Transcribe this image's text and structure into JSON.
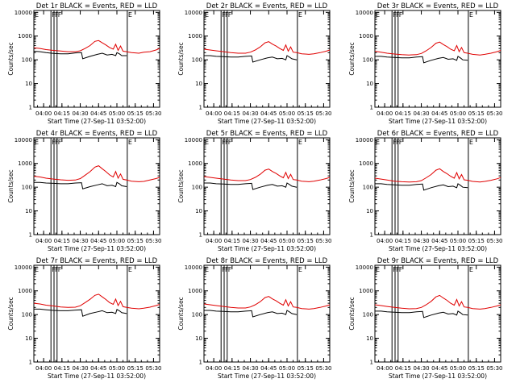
{
  "colors": {
    "events": "#000000",
    "lld": "#e00000",
    "background": "#ffffff",
    "axes": "#000000"
  },
  "common": {
    "ylabel": "Counts/sec",
    "xlabel": "Start Time (27-Sep-11 03:52:00)",
    "x_tick_labels": [
      "04:00",
      "04:15",
      "04:30",
      "04:45",
      "05:00",
      "05:15",
      "05:30"
    ],
    "x_tick_minutes": [
      8,
      23,
      38,
      53,
      68,
      83,
      98
    ],
    "y_tick_labels": [
      "1",
      "10",
      "100",
      "1000",
      "10000"
    ],
    "y_tick_values": [
      1,
      10,
      100,
      1000,
      10000
    ],
    "xlim_minutes": [
      0,
      103
    ],
    "ylim": [
      1,
      12000
    ],
    "flags": [
      {
        "label": "E",
        "minute": 0
      },
      {
        "label": "F",
        "minute": 14
      },
      {
        "label": "F",
        "minute": 16.5
      },
      {
        "label": "F",
        "minute": 19
      },
      {
        "label": "E",
        "minute": 76.5
      }
    ]
  },
  "chart_data": [
    {
      "type": "line",
      "title": "Det 1r BLACK = Events, RED = LLD",
      "series": [
        {
          "name": "Events",
          "x": [
            0,
            5,
            10,
            16,
            22,
            28,
            34,
            39,
            40,
            46,
            52,
            56,
            60,
            64,
            67,
            68,
            70,
            72,
            76
          ],
          "y": [
            230,
            220,
            200,
            185,
            180,
            180,
            195,
            200,
            110,
            140,
            170,
            190,
            160,
            170,
            150,
            200,
            180,
            150,
            150
          ]
        },
        {
          "name": "LLD",
          "x": [
            0,
            5,
            10,
            16,
            22,
            28,
            34,
            38,
            42,
            46,
            50,
            53,
            56,
            59,
            62,
            65,
            67,
            69,
            71,
            73,
            76,
            80,
            86,
            90,
            95,
            100,
            103
          ],
          "y": [
            320,
            300,
            270,
            250,
            235,
            220,
            220,
            240,
            300,
            400,
            600,
            650,
            520,
            420,
            330,
            280,
            450,
            250,
            380,
            230,
            220,
            200,
            190,
            210,
            220,
            260,
            300
          ]
        }
      ]
    },
    {
      "type": "line",
      "title": "Det 2r BLACK = Events, RED = LLD",
      "series": [
        {
          "name": "Events",
          "x": [
            0,
            5,
            10,
            16,
            22,
            28,
            34,
            39,
            40,
            46,
            52,
            56,
            60,
            64,
            67,
            68,
            70,
            72,
            76
          ],
          "y": [
            150,
            150,
            140,
            135,
            130,
            130,
            140,
            145,
            80,
            100,
            120,
            130,
            110,
            115,
            100,
            150,
            130,
            110,
            100
          ]
        },
        {
          "name": "LLD",
          "x": [
            0,
            5,
            10,
            16,
            22,
            28,
            34,
            38,
            42,
            46,
            50,
            53,
            56,
            59,
            62,
            65,
            67,
            69,
            71,
            73,
            76,
            80,
            86,
            90,
            95,
            100,
            103
          ],
          "y": [
            280,
            260,
            240,
            220,
            200,
            190,
            190,
            210,
            260,
            350,
            520,
            580,
            460,
            380,
            300,
            250,
            420,
            230,
            350,
            210,
            200,
            180,
            170,
            180,
            200,
            230,
            260
          ]
        }
      ]
    },
    {
      "type": "line",
      "title": "Det 3r BLACK = Events, RED = LLD",
      "series": [
        {
          "name": "Events",
          "x": [
            0,
            5,
            10,
            16,
            22,
            28,
            34,
            39,
            40,
            46,
            52,
            56,
            60,
            64,
            67,
            68,
            70,
            72,
            76
          ],
          "y": [
            140,
            140,
            130,
            125,
            120,
            120,
            130,
            135,
            75,
            95,
            115,
            125,
            105,
            110,
            95,
            140,
            120,
            100,
            95
          ]
        },
        {
          "name": "LLD",
          "x": [
            0,
            5,
            10,
            16,
            22,
            28,
            34,
            38,
            42,
            46,
            50,
            53,
            56,
            59,
            62,
            65,
            67,
            69,
            71,
            73,
            76,
            80,
            86,
            90,
            95,
            100,
            103
          ],
          "y": [
            230,
            210,
            190,
            175,
            165,
            160,
            165,
            185,
            240,
            330,
            500,
            560,
            440,
            360,
            280,
            240,
            400,
            220,
            330,
            200,
            190,
            170,
            160,
            170,
            190,
            220,
            250
          ]
        }
      ]
    },
    {
      "type": "line",
      "title": "Det 4r BLACK = Events, RED = LLD",
      "series": [
        {
          "name": "Events",
          "x": [
            0,
            5,
            10,
            16,
            22,
            28,
            34,
            39,
            40,
            46,
            52,
            56,
            60,
            64,
            67,
            68,
            70,
            72,
            76
          ],
          "y": [
            160,
            160,
            150,
            145,
            140,
            140,
            150,
            155,
            85,
            105,
            125,
            140,
            115,
            120,
            105,
            160,
            140,
            115,
            105
          ]
        },
        {
          "name": "LLD",
          "x": [
            0,
            5,
            10,
            16,
            22,
            28,
            34,
            38,
            42,
            46,
            50,
            53,
            56,
            59,
            62,
            65,
            67,
            69,
            71,
            73,
            76,
            80,
            86,
            90,
            95,
            100,
            103
          ],
          "y": [
            290,
            270,
            240,
            220,
            205,
            195,
            200,
            230,
            320,
            450,
            700,
            800,
            600,
            450,
            330,
            270,
            460,
            240,
            360,
            215,
            200,
            180,
            170,
            175,
            200,
            230,
            260
          ]
        }
      ]
    },
    {
      "type": "line",
      "title": "Det 5r BLACK = Events, RED = LLD",
      "series": [
        {
          "name": "Events",
          "x": [
            0,
            5,
            10,
            16,
            22,
            28,
            34,
            39,
            40,
            46,
            52,
            56,
            60,
            64,
            67,
            68,
            70,
            72,
            76
          ],
          "y": [
            150,
            150,
            140,
            135,
            130,
            130,
            140,
            145,
            80,
            100,
            120,
            130,
            110,
            115,
            100,
            150,
            130,
            110,
            100
          ]
        },
        {
          "name": "LLD",
          "x": [
            0,
            5,
            10,
            16,
            22,
            28,
            34,
            38,
            42,
            46,
            50,
            53,
            56,
            59,
            62,
            65,
            67,
            69,
            71,
            73,
            76,
            80,
            86,
            90,
            95,
            100,
            103
          ],
          "y": [
            280,
            260,
            240,
            220,
            200,
            190,
            190,
            210,
            260,
            350,
            520,
            580,
            460,
            380,
            300,
            250,
            420,
            230,
            350,
            210,
            200,
            180,
            170,
            180,
            200,
            230,
            260
          ]
        }
      ]
    },
    {
      "type": "line",
      "title": "Det 6r BLACK = Events, RED = LLD",
      "series": [
        {
          "name": "Events",
          "x": [
            0,
            5,
            10,
            16,
            22,
            28,
            34,
            39,
            40,
            46,
            52,
            56,
            60,
            64,
            67,
            68,
            70,
            72,
            76
          ],
          "y": [
            140,
            140,
            130,
            125,
            120,
            120,
            130,
            135,
            75,
            95,
            115,
            125,
            105,
            110,
            95,
            140,
            120,
            100,
            95
          ]
        },
        {
          "name": "LLD",
          "x": [
            0,
            5,
            10,
            16,
            22,
            28,
            34,
            38,
            42,
            46,
            50,
            53,
            56,
            59,
            62,
            65,
            67,
            69,
            71,
            73,
            76,
            80,
            86,
            90,
            95,
            100,
            103
          ],
          "y": [
            240,
            220,
            200,
            180,
            170,
            165,
            170,
            190,
            250,
            340,
            520,
            600,
            460,
            370,
            290,
            240,
            410,
            225,
            340,
            205,
            195,
            175,
            165,
            175,
            195,
            225,
            255
          ]
        }
      ]
    },
    {
      "type": "line",
      "title": "Det 7r BLACK = Events, RED = LLD",
      "series": [
        {
          "name": "Events",
          "x": [
            0,
            5,
            10,
            16,
            22,
            28,
            34,
            39,
            40,
            46,
            52,
            56,
            60,
            64,
            67,
            68,
            70,
            72,
            76
          ],
          "y": [
            170,
            170,
            160,
            150,
            145,
            145,
            155,
            160,
            85,
            110,
            130,
            145,
            120,
            125,
            110,
            165,
            145,
            120,
            110
          ]
        },
        {
          "name": "LLD",
          "x": [
            0,
            5,
            10,
            16,
            22,
            28,
            34,
            38,
            42,
            46,
            50,
            53,
            56,
            59,
            62,
            65,
            67,
            69,
            71,
            73,
            76,
            80,
            86,
            90,
            95,
            100,
            103
          ],
          "y": [
            300,
            280,
            250,
            230,
            210,
            200,
            205,
            235,
            320,
            440,
            650,
            720,
            560,
            430,
            320,
            270,
            450,
            240,
            360,
            215,
            200,
            185,
            175,
            185,
            205,
            240,
            270
          ]
        }
      ]
    },
    {
      "type": "line",
      "title": "Det 8r BLACK = Events, RED = LLD",
      "series": [
        {
          "name": "Events",
          "x": [
            0,
            5,
            10,
            16,
            22,
            28,
            34,
            39,
            40,
            46,
            52,
            56,
            60,
            64,
            67,
            68,
            70,
            72,
            76
          ],
          "y": [
            150,
            150,
            140,
            135,
            130,
            130,
            140,
            145,
            80,
            100,
            120,
            130,
            110,
            115,
            100,
            150,
            130,
            110,
            100
          ]
        },
        {
          "name": "LLD",
          "x": [
            0,
            5,
            10,
            16,
            22,
            28,
            34,
            38,
            42,
            46,
            50,
            53,
            56,
            59,
            62,
            65,
            67,
            69,
            71,
            73,
            76,
            80,
            86,
            90,
            95,
            100,
            103
          ],
          "y": [
            280,
            260,
            240,
            220,
            200,
            190,
            190,
            210,
            260,
            350,
            520,
            580,
            460,
            380,
            300,
            250,
            420,
            230,
            350,
            210,
            200,
            180,
            170,
            180,
            200,
            230,
            260
          ]
        }
      ]
    },
    {
      "type": "line",
      "title": "Det 9r BLACK = Events, RED = LLD",
      "series": [
        {
          "name": "Events",
          "x": [
            0,
            5,
            10,
            16,
            22,
            28,
            34,
            39,
            40,
            46,
            52,
            56,
            60,
            64,
            67,
            68,
            70,
            72,
            76
          ],
          "y": [
            140,
            140,
            130,
            125,
            120,
            120,
            130,
            135,
            75,
            95,
            115,
            125,
            105,
            110,
            95,
            140,
            120,
            100,
            95
          ]
        },
        {
          "name": "LLD",
          "x": [
            0,
            5,
            10,
            16,
            22,
            28,
            34,
            38,
            42,
            46,
            50,
            53,
            56,
            59,
            62,
            65,
            67,
            69,
            71,
            73,
            76,
            80,
            86,
            90,
            95,
            100,
            103
          ],
          "y": [
            260,
            240,
            220,
            200,
            185,
            175,
            180,
            200,
            260,
            360,
            560,
            640,
            500,
            400,
            300,
            250,
            430,
            230,
            350,
            210,
            200,
            180,
            170,
            180,
            200,
            230,
            260
          ]
        }
      ]
    }
  ]
}
